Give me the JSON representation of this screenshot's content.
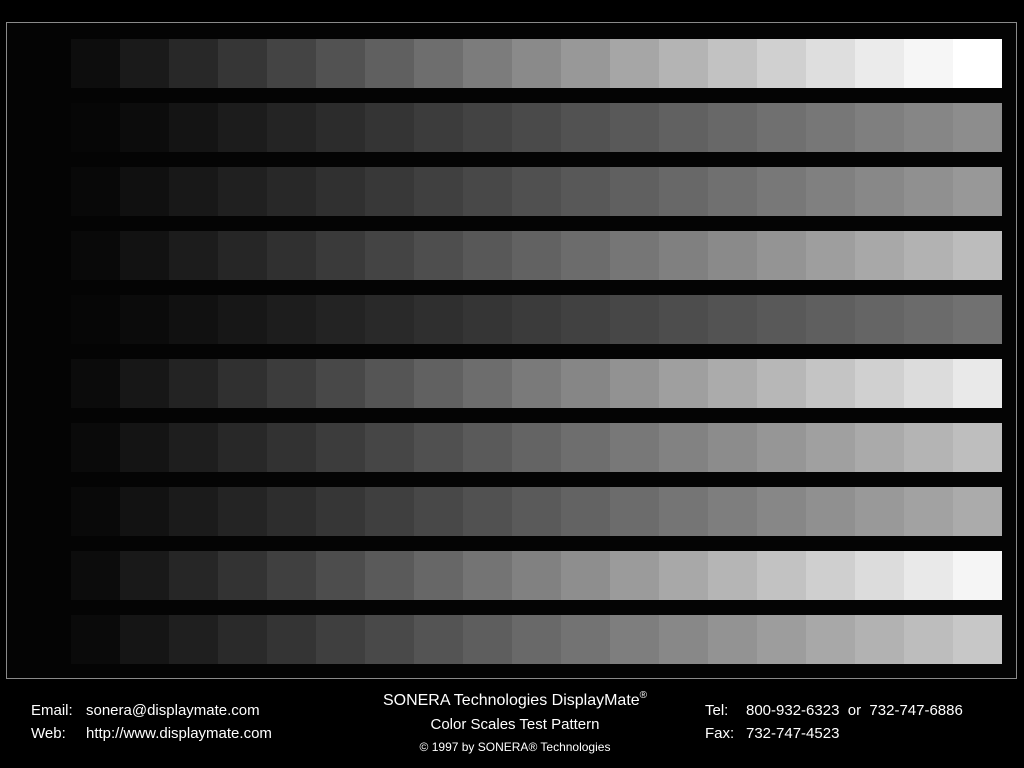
{
  "rows": [
    {
      "colors": [
        "#0d0d0d",
        "#1a1a1a",
        "#282828",
        "#363636",
        "#444444",
        "#525252",
        "#606060",
        "#6e6e6e",
        "#7c7c7c",
        "#8a8a8a",
        "#989898",
        "#a6a6a6",
        "#b4b4b4",
        "#c2c2c2",
        "#d0d0d0",
        "#dedede",
        "#ebebeb",
        "#f6f6f6",
        "#ffffff"
      ]
    },
    {
      "colors": [
        "#060606",
        "#0c0c0c",
        "#141414",
        "#1c1c1c",
        "#242424",
        "#2c2c2c",
        "#343434",
        "#3c3c3c",
        "#434343",
        "#4a4a4a",
        "#525252",
        "#595959",
        "#616161",
        "#686868",
        "#707070",
        "#777777",
        "#7f7f7f",
        "#868686",
        "#8d8d8d"
      ]
    },
    {
      "colors": [
        "#080808",
        "#101010",
        "#181818",
        "#202020",
        "#282828",
        "#303030",
        "#383838",
        "#404040",
        "#484848",
        "#505050",
        "#585858",
        "#606060",
        "#686868",
        "#707070",
        "#787878",
        "#808080",
        "#888888",
        "#909090",
        "#989898"
      ]
    },
    {
      "colors": [
        "#090909",
        "#121212",
        "#1c1c1c",
        "#262626",
        "#303030",
        "#3a3a3a",
        "#444444",
        "#4e4e4e",
        "#585858",
        "#626262",
        "#6c6c6c",
        "#767676",
        "#808080",
        "#8a8a8a",
        "#949494",
        "#9e9e9e",
        "#a8a8a8",
        "#b2b2b2",
        "#bcbcbc"
      ]
    },
    {
      "colors": [
        "#060606",
        "#0b0b0b",
        "#111111",
        "#171717",
        "#1d1d1d",
        "#232323",
        "#292929",
        "#2f2f2f",
        "#353535",
        "#3b3b3b",
        "#414141",
        "#474747",
        "#4d4d4d",
        "#535353",
        "#595959",
        "#5f5f5f",
        "#656565",
        "#6b6b6b",
        "#717171"
      ]
    },
    {
      "colors": [
        "#0b0b0b",
        "#171717",
        "#232323",
        "#303030",
        "#3c3c3c",
        "#484848",
        "#555555",
        "#616161",
        "#6d6d6d",
        "#7a7a7a",
        "#868686",
        "#929292",
        "#9f9f9f",
        "#ababab",
        "#b7b7b7",
        "#c4c4c4",
        "#d0d0d0",
        "#dcdcdc",
        "#e9e9e9"
      ]
    },
    {
      "colors": [
        "#0a0a0a",
        "#141414",
        "#1e1e1e",
        "#282828",
        "#323232",
        "#3c3c3c",
        "#464646",
        "#505050",
        "#5a5a5a",
        "#646464",
        "#6e6e6e",
        "#787878",
        "#828282",
        "#8c8c8c",
        "#969696",
        "#a0a0a0",
        "#aaaaaa",
        "#b4b4b4",
        "#bebebe"
      ]
    },
    {
      "colors": [
        "#090909",
        "#121212",
        "#1b1b1b",
        "#242424",
        "#2d2d2d",
        "#363636",
        "#3f3f3f",
        "#484848",
        "#515151",
        "#5a5a5a",
        "#636363",
        "#6c6c6c",
        "#757575",
        "#7e7e7e",
        "#878787",
        "#909090",
        "#999999",
        "#a2a2a2",
        "#ababab"
      ]
    },
    {
      "colors": [
        "#0c0c0c",
        "#191919",
        "#262626",
        "#333333",
        "#404040",
        "#4d4d4d",
        "#5a5a5a",
        "#676767",
        "#747474",
        "#818181",
        "#8e8e8e",
        "#9b9b9b",
        "#a8a8a8",
        "#b5b5b5",
        "#c2c2c2",
        "#cfcfcf",
        "#dcdcdc",
        "#e9e9e9",
        "#f5f5f5"
      ]
    },
    {
      "colors": [
        "#0a0a0a",
        "#151515",
        "#1f1f1f",
        "#2a2a2a",
        "#343434",
        "#3f3f3f",
        "#494949",
        "#545454",
        "#5e5e5e",
        "#696969",
        "#737373",
        "#7e7e7e",
        "#888888",
        "#939393",
        "#9d9d9d",
        "#a8a8a8",
        "#b2b2b2",
        "#bdbdbd",
        "#c7c7c7"
      ]
    }
  ],
  "footer": {
    "email_label": "Email:",
    "email_value": "sonera@displaymate.com",
    "web_label": "Web:",
    "web_value": "http://www.displaymate.com",
    "brand_title": "SONERA Technologies DisplayMate",
    "brand_mark": "®",
    "pattern_name": "Color Scales Test Pattern",
    "copyright": "© 1997 by SONERA® Technologies",
    "tel_label": "Tel:",
    "tel_value": "800-932-6323  or  732-747-6886",
    "fax_label": "Fax:",
    "fax_value": "732-747-4523"
  }
}
